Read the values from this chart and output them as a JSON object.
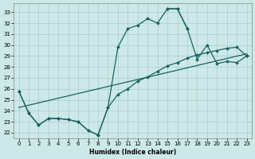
{
  "background_color": "#cce8e8",
  "grid_color": "#aacccc",
  "line_color": "#1a6060",
  "xlabel": "Humidex (Indice chaleur)",
  "xlim": [
    -0.5,
    23.5
  ],
  "ylim": [
    21.5,
    33.8
  ],
  "yticks": [
    22,
    23,
    24,
    25,
    26,
    27,
    28,
    29,
    30,
    31,
    32,
    33
  ],
  "xticks": [
    0,
    1,
    2,
    3,
    4,
    5,
    6,
    7,
    8,
    9,
    10,
    11,
    12,
    13,
    14,
    15,
    16,
    17,
    18,
    19,
    20,
    21,
    22,
    23
  ],
  "curve1_x": [
    0,
    1,
    2,
    3,
    4,
    5,
    6,
    7,
    8,
    9,
    10,
    11,
    12,
    13,
    14,
    15,
    16,
    17
  ],
  "curve1_y": [
    25.8,
    23.8,
    22.7,
    23.3,
    23.3,
    23.2,
    23.0,
    22.2,
    21.8,
    24.3,
    29.8,
    31.5,
    31.8,
    32.4,
    32.0,
    33.3,
    33.3,
    31.5
  ],
  "curve2_x": [
    15,
    16,
    17,
    18,
    19,
    20,
    21,
    22,
    23
  ],
  "curve2_y": [
    33.3,
    33.3,
    31.5,
    28.7,
    30.0,
    28.3,
    28.5,
    28.4,
    29.0
  ],
  "curve3_x": [
    0,
    1,
    2,
    3,
    4,
    5,
    6,
    7,
    8,
    9,
    10,
    11,
    12,
    13,
    14,
    15,
    16,
    17,
    18,
    19,
    20,
    21,
    22,
    23
  ],
  "curve3_y": [
    25.8,
    23.8,
    22.7,
    23.3,
    23.3,
    23.2,
    23.0,
    22.2,
    21.8,
    24.3,
    25.5,
    26.0,
    26.7,
    27.1,
    27.6,
    28.1,
    28.4,
    28.8,
    29.1,
    29.3,
    29.5,
    29.7,
    29.8,
    29.0
  ],
  "curve4_x": [
    0,
    23
  ],
  "curve4_y": [
    24.3,
    29.2
  ]
}
